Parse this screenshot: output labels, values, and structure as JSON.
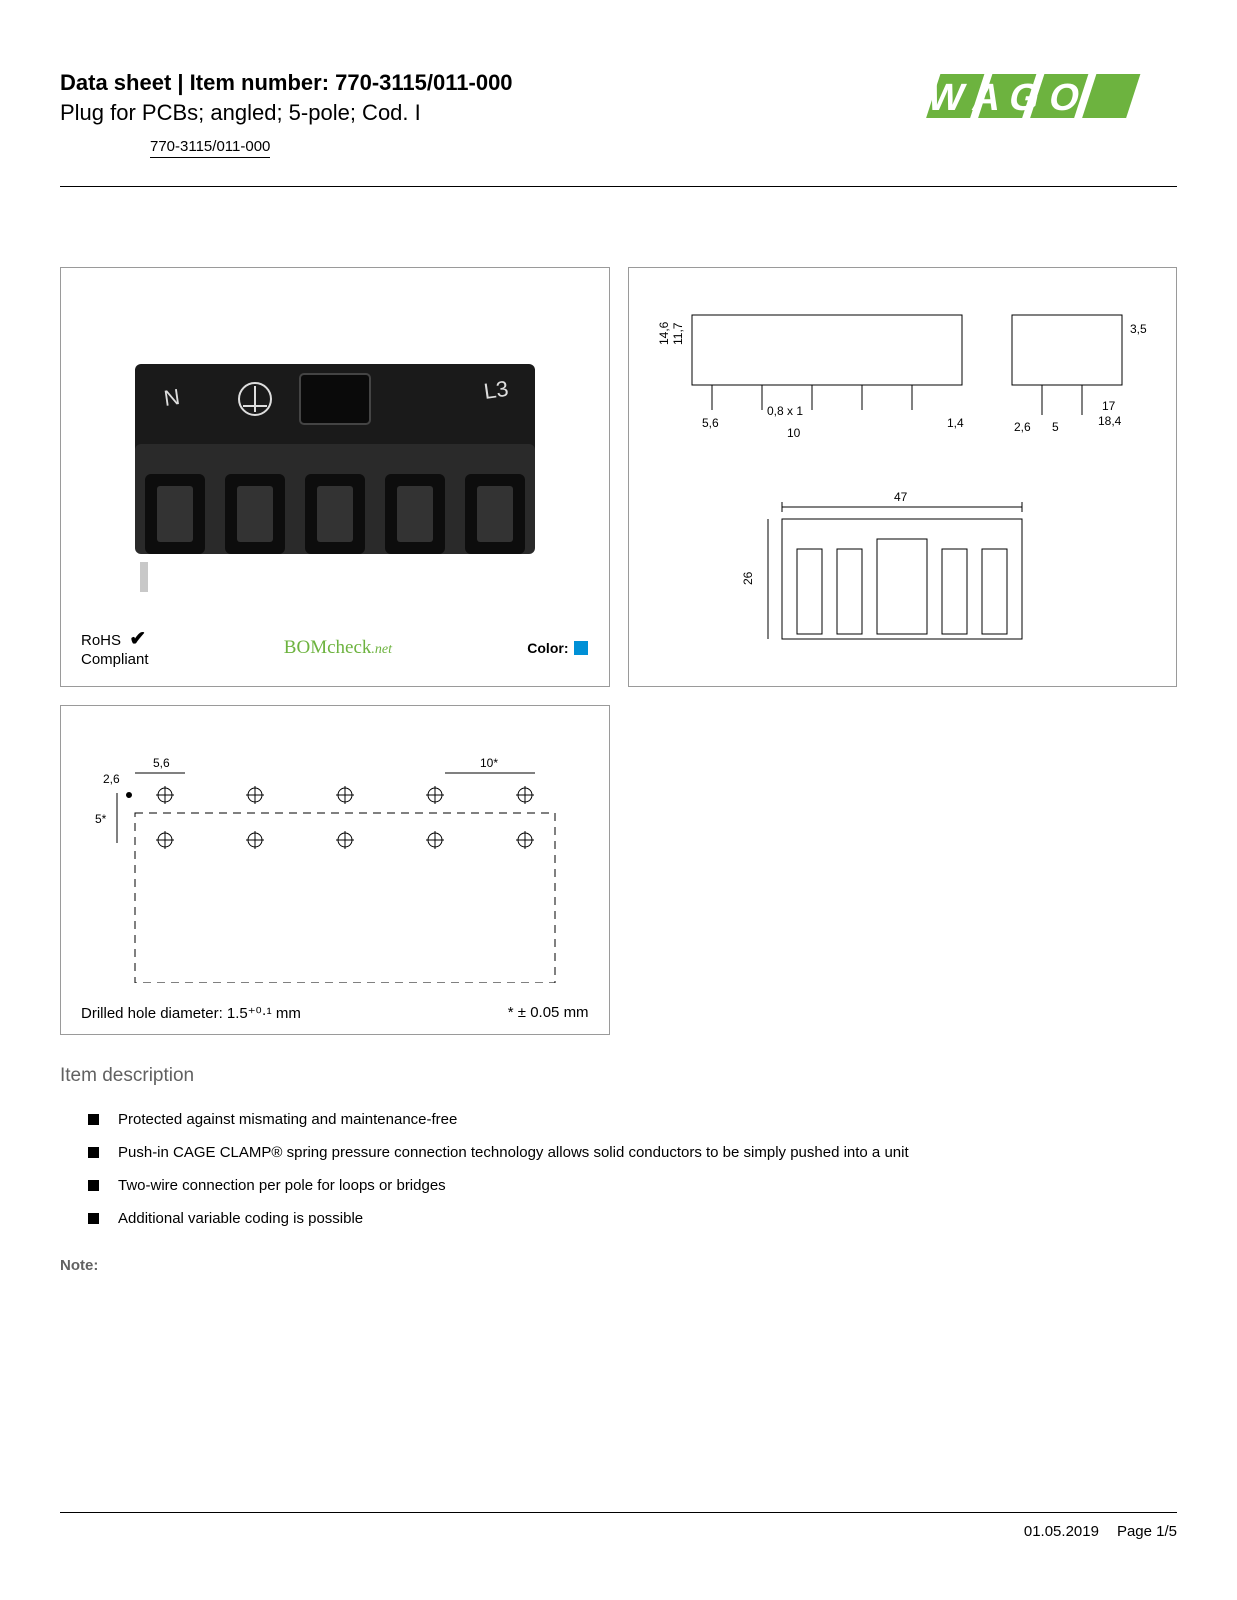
{
  "header": {
    "title_prefix": "Data sheet",
    "title_sep": " | ",
    "title_label": "Item number: ",
    "item_number": "770-3115/011-000",
    "subtitle": "Plug for PCBs; angled; 5-pole; Cod. I",
    "part_link": "770-3115/011-000"
  },
  "logo": {
    "text": "WAGO",
    "color": "#6db33f"
  },
  "photo_panel": {
    "rohs_line1": "RoHS",
    "rohs_line2": "Compliant",
    "check_icon": "✔",
    "bomcheck_main": "BOMcheck",
    "bomcheck_suffix": ".net",
    "color_label": "Color:",
    "swatch_color": "#0090d6",
    "connector_color": "#1a1a1a",
    "pole_labels": [
      "N",
      "⏚",
      "",
      "",
      "L3"
    ]
  },
  "tech_drawing_1": {
    "dims_side_top": "14,6",
    "dims_side_inner": "11,7",
    "dims_a": "5,6",
    "dims_b": "0,8 x 1",
    "dims_c": "10",
    "dims_d": "1,4",
    "dims_e": "3,5",
    "dims_f": "2,6",
    "dims_g": "5",
    "dims_h": "17",
    "dims_i": "18,4",
    "front_width": "47",
    "front_height": "26"
  },
  "tech_drawing_2": {
    "dim_t": "2,6",
    "dim_a": "5,6",
    "dim_p": "10*",
    "dim_v": "5*",
    "footer_left": "Drilled hole diameter: 1.5⁺⁰·¹ mm",
    "footer_right": "* ± 0.05 mm",
    "cols": 5,
    "rows": 2
  },
  "description": {
    "heading": "Item description",
    "bullets": [
      "Protected against mismating and maintenance-free",
      "Push-in CAGE CLAMP® spring pressure connection technology allows solid conductors to be simply pushed into a unit",
      "Two-wire connection per pole for loops or bridges",
      "Additional variable coding is possible"
    ],
    "note_label": "Note:"
  },
  "footer": {
    "date": "01.05.2019",
    "page": "Page 1/5"
  }
}
